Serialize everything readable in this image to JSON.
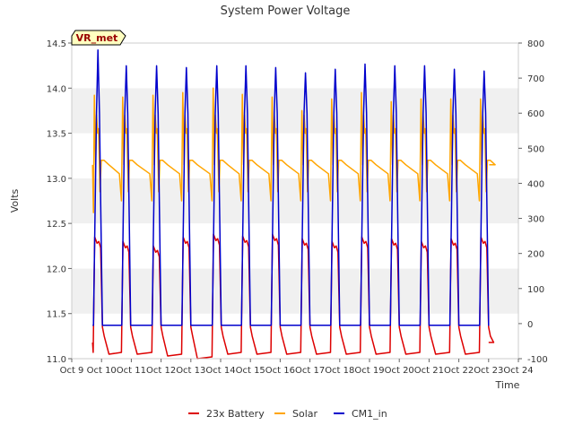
{
  "chart_data": {
    "type": "line",
    "title": "System Power Voltage",
    "ylabel": "Volts",
    "xlabel": "Time",
    "badge": "VR_met",
    "x_ticks": [
      "Oct 9",
      "Oct 10",
      "Oct 11",
      "Oct 12",
      "Oct 13",
      "Oct 14",
      "Oct 15",
      "Oct 16",
      "Oct 17",
      "Oct 18",
      "Oct 19",
      "Oct 20",
      "Oct 21",
      "Oct 22",
      "Oct 23",
      "Oct 24"
    ],
    "xlim": [
      "Oct 9",
      "Oct 24"
    ],
    "ylim_left": [
      11.0,
      14.5
    ],
    "ylim_right": [
      -100,
      800
    ],
    "y_ticks_left": [
      "11.0",
      "11.5",
      "12.0",
      "12.5",
      "13.0",
      "13.5",
      "14.0",
      "14.5"
    ],
    "y_ticks_right": [
      "-100",
      "0",
      "100",
      "200",
      "300",
      "400",
      "500",
      "600",
      "700",
      "800"
    ],
    "grid": false,
    "bands": "alternating horizontal grey bands",
    "legend_position": "bottom-center",
    "series": [
      {
        "name": "23x Battery",
        "axis": "left",
        "color": "#dd0000",
        "peak_values": [
          12.35,
          12.3,
          12.25,
          12.35,
          12.38,
          12.36,
          12.38,
          12.33,
          12.3,
          12.35,
          12.33,
          12.3,
          12.33,
          12.35
        ],
        "trough_values": [
          11.05,
          11.05,
          11.05,
          11.03,
          11.0,
          11.05,
          11.05,
          11.05,
          11.05,
          11.05,
          11.05,
          11.05,
          11.05,
          11.05
        ],
        "start_value": 11.18,
        "end_value": 11.18
      },
      {
        "name": "Solar",
        "axis": "left",
        "color": "#ffa500",
        "peak_values": [
          13.92,
          13.9,
          13.92,
          13.95,
          14.0,
          13.93,
          13.9,
          13.75,
          13.88,
          13.95,
          13.85,
          13.88,
          13.88,
          13.88
        ],
        "night_value": 13.2,
        "start_value": 13.15,
        "end_value": 13.15
      },
      {
        "name": "CM1_in",
        "axis": "right",
        "color": "#0000cc",
        "peak_values": [
          780,
          735,
          735,
          730,
          735,
          735,
          730,
          715,
          725,
          740,
          735,
          735,
          725,
          720
        ],
        "night_value": -5,
        "start_value": -5,
        "end_value": -5
      }
    ],
    "day_offsets": [
      0.75,
      1.7,
      2.72,
      3.72,
      4.74,
      5.72,
      6.72,
      7.72,
      8.72,
      9.72,
      10.72,
      11.72,
      12.72,
      13.72
    ]
  }
}
